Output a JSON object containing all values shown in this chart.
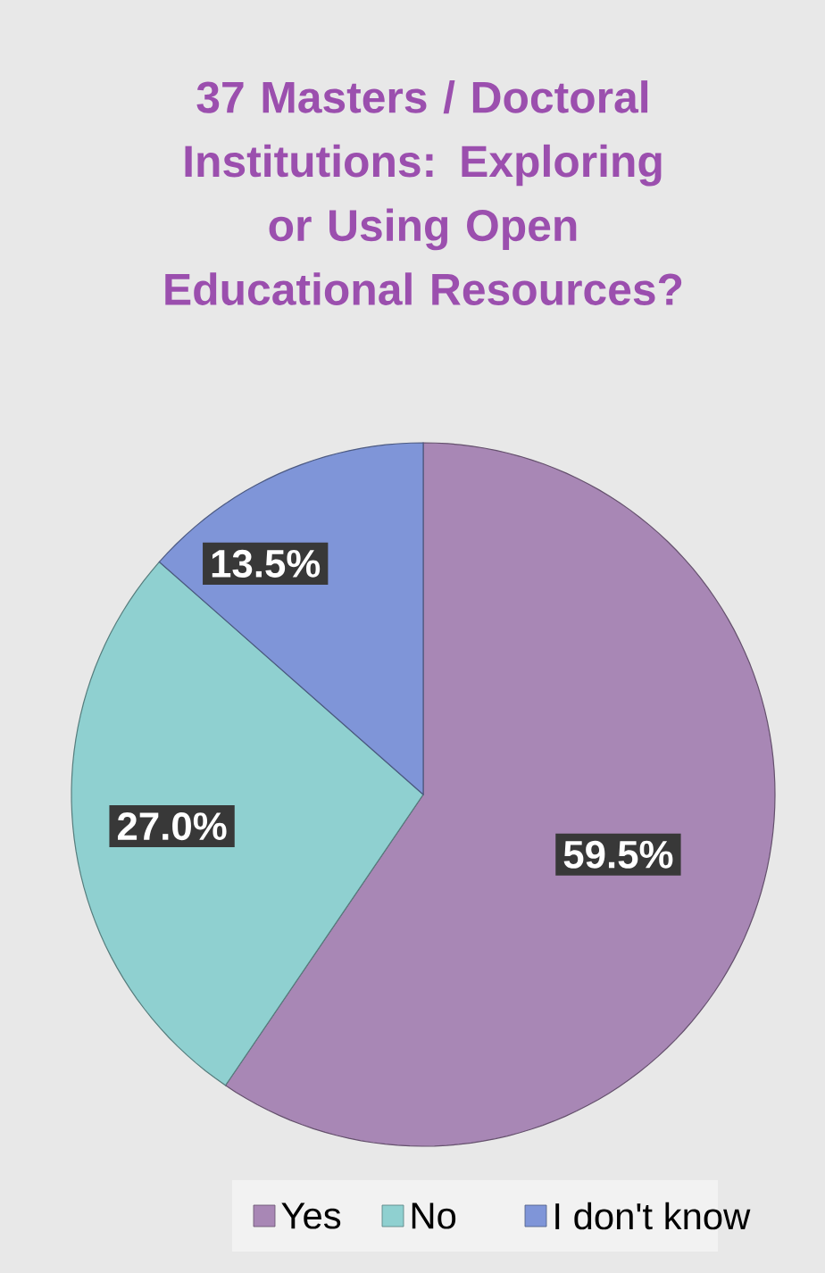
{
  "chart_data": {
    "type": "pie",
    "title": "37 Masters / Doctoral Institutions: Exploring or Using Open Educational Resources?",
    "categories": [
      "Yes",
      "No",
      "I don't know"
    ],
    "values": [
      59.5,
      27.0,
      13.5
    ],
    "value_labels": [
      "59.5%",
      "27.0%",
      "13.5%"
    ],
    "colors": [
      "#a887b5",
      "#8fd0d0",
      "#7f95d8"
    ],
    "legend": "bottom"
  }
}
